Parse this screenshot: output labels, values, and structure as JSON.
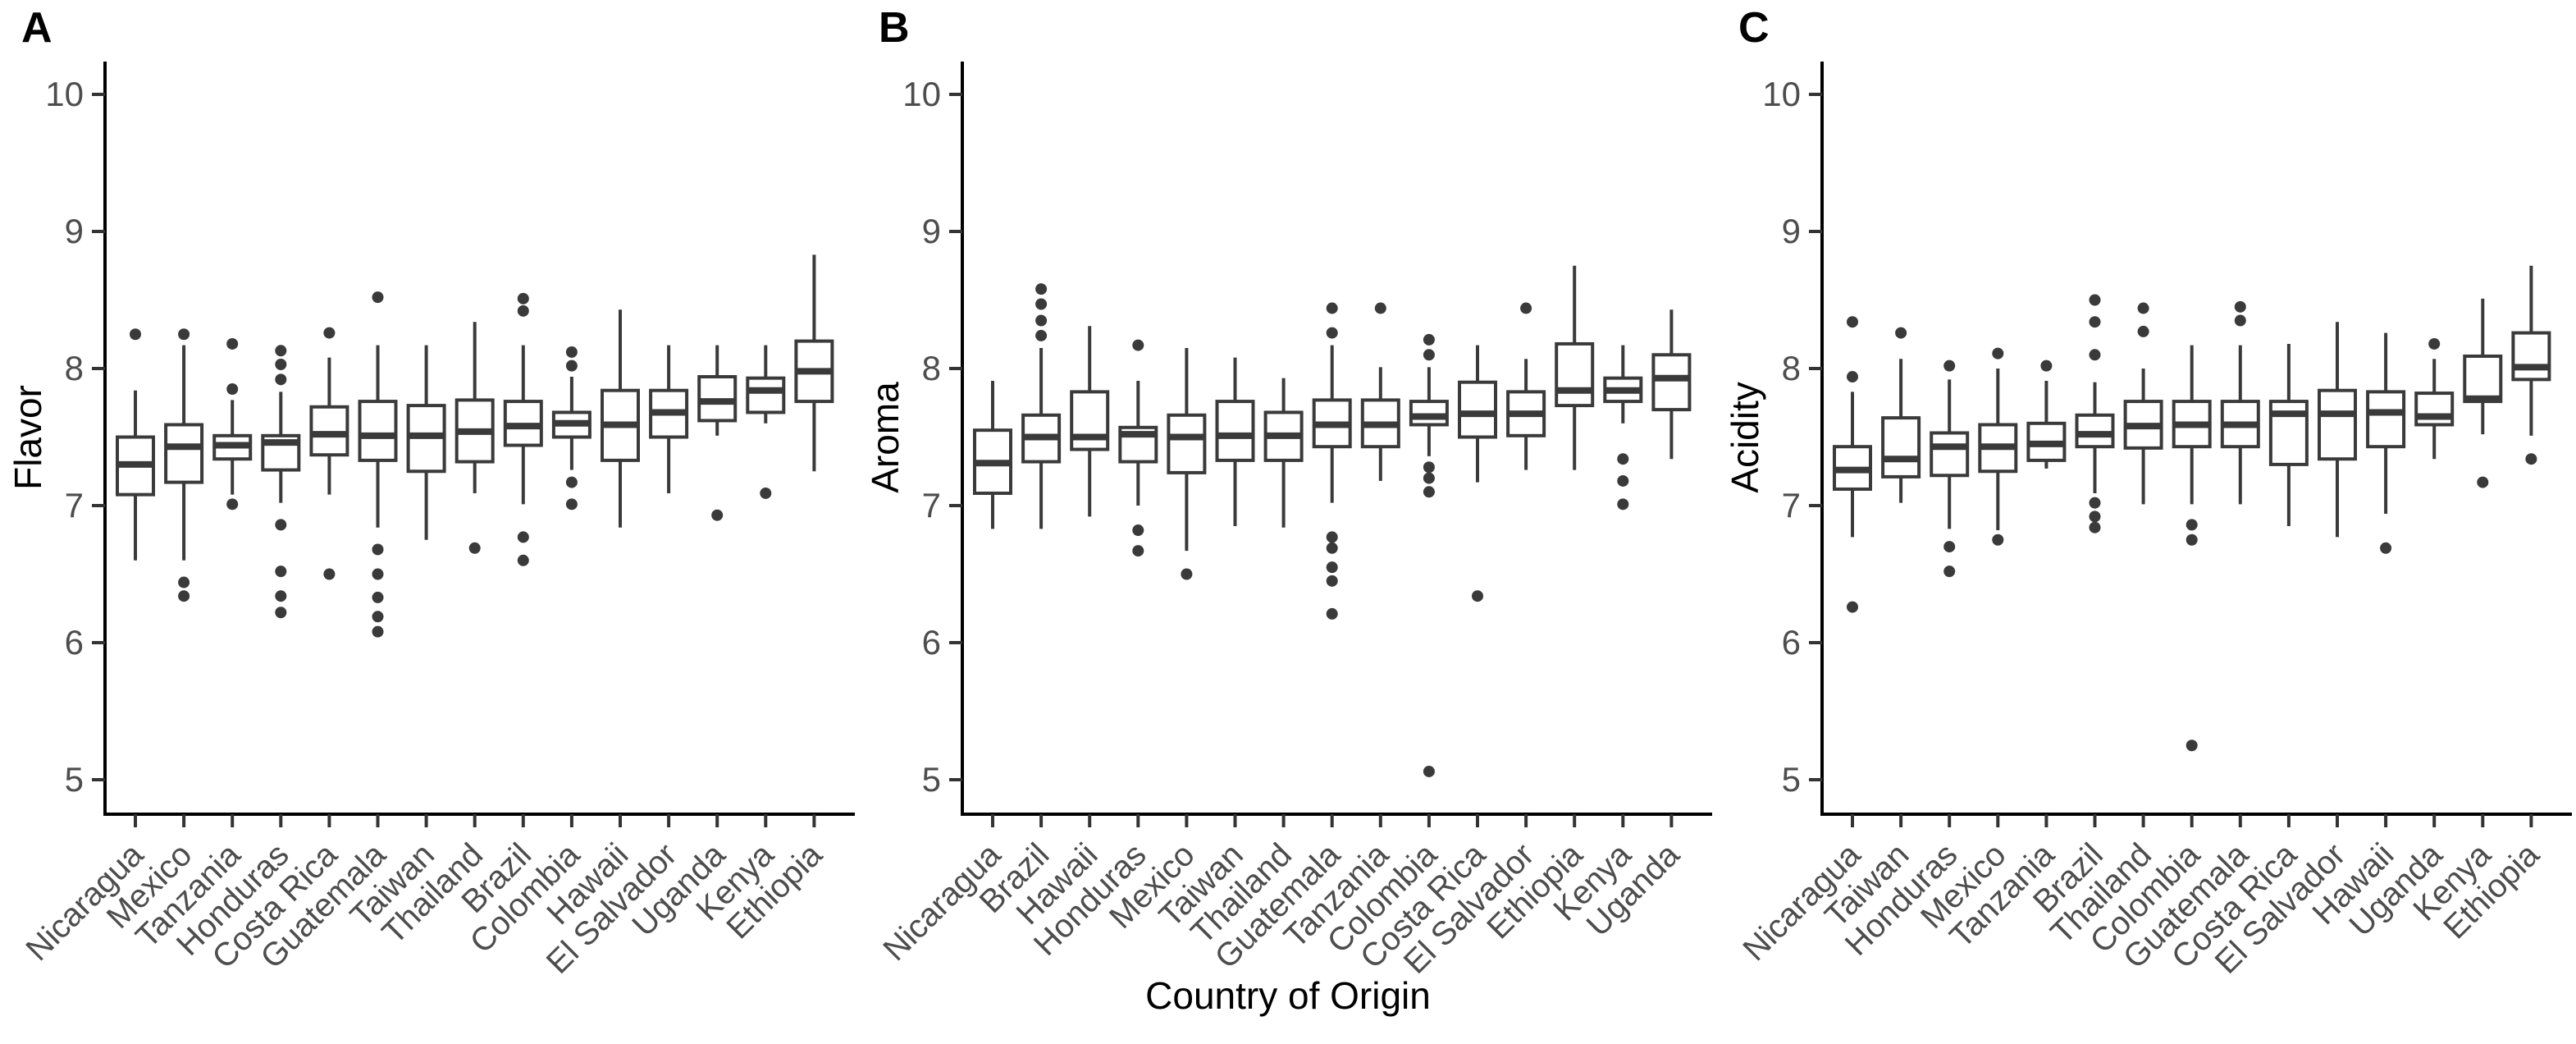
{
  "x_title": "Country of Origin",
  "colors": {
    "background": "#ffffff",
    "axis_line": "#000000",
    "tick_mark": "#333333",
    "tick_label": "#4d4d4d",
    "box_stroke": "#3a3a3a",
    "box_fill": "#ffffff",
    "outlier": "#3a3a3a",
    "title_text": "#000000"
  },
  "axis": {
    "y_ticks": [
      10,
      9,
      8,
      7,
      6,
      5
    ],
    "y_min": 4.75,
    "y_max": 10.25,
    "grid": "off",
    "legend": "none"
  },
  "chart_data": [
    {
      "type": "box",
      "letter": "A",
      "ylabel": "Flavor",
      "categories": [
        "Nicaragua",
        "Mexico",
        "Tanzania",
        "Honduras",
        "Costa Rica",
        "Guatemala",
        "Taiwan",
        "Thailand",
        "Brazil",
        "Colombia",
        "Hawaii",
        "El Salvador",
        "Uganda",
        "Kenya",
        "Ethiopia"
      ],
      "series": [
        {
          "name": "Nicaragua",
          "whisker_low": 6.6,
          "q1": 7.08,
          "median": 7.3,
          "q3": 7.5,
          "whisker_high": 7.84,
          "outliers": [
            8.25
          ]
        },
        {
          "name": "Mexico",
          "whisker_low": 6.6,
          "q1": 7.17,
          "median": 7.43,
          "q3": 7.59,
          "whisker_high": 8.17,
          "outliers": [
            8.25,
            6.44,
            6.34
          ]
        },
        {
          "name": "Tanzania",
          "whisker_low": 7.08,
          "q1": 7.34,
          "median": 7.44,
          "q3": 7.51,
          "whisker_high": 7.77,
          "outliers": [
            8.18,
            7.85,
            7.01
          ]
        },
        {
          "name": "Honduras",
          "whisker_low": 7.02,
          "q1": 7.26,
          "median": 7.46,
          "q3": 7.51,
          "whisker_high": 7.83,
          "outliers": [
            8.13,
            8.03,
            7.92,
            6.86,
            6.52,
            6.34,
            6.22
          ]
        },
        {
          "name": "Costa Rica",
          "whisker_low": 7.08,
          "q1": 7.37,
          "median": 7.52,
          "q3": 7.72,
          "whisker_high": 8.08,
          "outliers": [
            8.26,
            6.5
          ]
        },
        {
          "name": "Guatemala",
          "whisker_low": 6.84,
          "q1": 7.33,
          "median": 7.51,
          "q3": 7.76,
          "whisker_high": 8.17,
          "outliers": [
            8.52,
            6.68,
            6.5,
            6.33,
            6.19,
            6.08
          ]
        },
        {
          "name": "Taiwan",
          "whisker_low": 6.75,
          "q1": 7.25,
          "median": 7.51,
          "q3": 7.73,
          "whisker_high": 8.17,
          "outliers": []
        },
        {
          "name": "Thailand",
          "whisker_low": 7.09,
          "q1": 7.32,
          "median": 7.54,
          "q3": 7.77,
          "whisker_high": 8.34,
          "outliers": [
            6.69
          ]
        },
        {
          "name": "Brazil",
          "whisker_low": 7.01,
          "q1": 7.44,
          "median": 7.58,
          "q3": 7.76,
          "whisker_high": 8.17,
          "outliers": [
            8.51,
            8.42,
            6.77,
            6.6
          ]
        },
        {
          "name": "Colombia",
          "whisker_low": 7.26,
          "q1": 7.5,
          "median": 7.6,
          "q3": 7.68,
          "whisker_high": 7.94,
          "outliers": [
            8.12,
            8.02,
            7.17,
            7.01
          ]
        },
        {
          "name": "Hawaii",
          "whisker_low": 6.84,
          "q1": 7.33,
          "median": 7.59,
          "q3": 7.84,
          "whisker_high": 8.43,
          "outliers": []
        },
        {
          "name": "El Salvador",
          "whisker_low": 7.09,
          "q1": 7.5,
          "median": 7.68,
          "q3": 7.84,
          "whisker_high": 8.17,
          "outliers": []
        },
        {
          "name": "Uganda",
          "whisker_low": 7.51,
          "q1": 7.62,
          "median": 7.76,
          "q3": 7.94,
          "whisker_high": 8.17,
          "outliers": [
            6.93
          ]
        },
        {
          "name": "Kenya",
          "whisker_low": 7.6,
          "q1": 7.68,
          "median": 7.84,
          "q3": 7.93,
          "whisker_high": 8.17,
          "outliers": [
            7.09
          ]
        },
        {
          "name": "Ethiopia",
          "whisker_low": 7.25,
          "q1": 7.76,
          "median": 7.98,
          "q3": 8.2,
          "whisker_high": 8.83,
          "outliers": []
        }
      ]
    },
    {
      "type": "box",
      "letter": "B",
      "ylabel": "Aroma",
      "categories": [
        "Nicaragua",
        "Brazil",
        "Hawaii",
        "Honduras",
        "Mexico",
        "Taiwan",
        "Thailand",
        "Guatemala",
        "Tanzania",
        "Colombia",
        "Costa Rica",
        "El Salvador",
        "Ethiopia",
        "Kenya",
        "Uganda"
      ],
      "series": [
        {
          "name": "Nicaragua",
          "whisker_low": 6.83,
          "q1": 7.09,
          "median": 7.31,
          "q3": 7.55,
          "whisker_high": 7.91,
          "outliers": []
        },
        {
          "name": "Brazil",
          "whisker_low": 6.83,
          "q1": 7.32,
          "median": 7.5,
          "q3": 7.66,
          "whisker_high": 8.15,
          "outliers": [
            8.58,
            8.47,
            8.35,
            8.24
          ]
        },
        {
          "name": "Hawaii",
          "whisker_low": 6.92,
          "q1": 7.41,
          "median": 7.5,
          "q3": 7.83,
          "whisker_high": 8.31,
          "outliers": []
        },
        {
          "name": "Honduras",
          "whisker_low": 7.0,
          "q1": 7.32,
          "median": 7.52,
          "q3": 7.57,
          "whisker_high": 7.91,
          "outliers": [
            8.17,
            6.82,
            6.67
          ]
        },
        {
          "name": "Mexico",
          "whisker_low": 6.67,
          "q1": 7.24,
          "median": 7.5,
          "q3": 7.66,
          "whisker_high": 8.15,
          "outliers": [
            6.5
          ]
        },
        {
          "name": "Taiwan",
          "whisker_low": 6.85,
          "q1": 7.33,
          "median": 7.51,
          "q3": 7.76,
          "whisker_high": 8.08,
          "outliers": []
        },
        {
          "name": "Thailand",
          "whisker_low": 6.84,
          "q1": 7.33,
          "median": 7.51,
          "q3": 7.68,
          "whisker_high": 7.93,
          "outliers": []
        },
        {
          "name": "Guatemala",
          "whisker_low": 7.02,
          "q1": 7.43,
          "median": 7.59,
          "q3": 7.77,
          "whisker_high": 8.17,
          "outliers": [
            8.44,
            8.26,
            6.77,
            6.69,
            6.55,
            6.45,
            6.21
          ]
        },
        {
          "name": "Tanzania",
          "whisker_low": 7.18,
          "q1": 7.43,
          "median": 7.59,
          "q3": 7.77,
          "whisker_high": 8.01,
          "outliers": [
            8.44
          ]
        },
        {
          "name": "Colombia",
          "whisker_low": 7.36,
          "q1": 7.59,
          "median": 7.65,
          "q3": 7.76,
          "whisker_high": 8.01,
          "outliers": [
            8.21,
            8.1,
            7.28,
            7.2,
            7.1,
            5.06
          ]
        },
        {
          "name": "Costa Rica",
          "whisker_low": 7.17,
          "q1": 7.5,
          "median": 7.67,
          "q3": 7.9,
          "whisker_high": 8.17,
          "outliers": [
            6.34
          ]
        },
        {
          "name": "El Salvador",
          "whisker_low": 7.26,
          "q1": 7.51,
          "median": 7.67,
          "q3": 7.83,
          "whisker_high": 8.07,
          "outliers": [
            8.44
          ]
        },
        {
          "name": "Ethiopia",
          "whisker_low": 7.26,
          "q1": 7.73,
          "median": 7.84,
          "q3": 8.18,
          "whisker_high": 8.75,
          "outliers": []
        },
        {
          "name": "Kenya",
          "whisker_low": 7.6,
          "q1": 7.76,
          "median": 7.84,
          "q3": 7.93,
          "whisker_high": 8.17,
          "outliers": [
            7.34,
            7.18,
            7.01
          ]
        },
        {
          "name": "Uganda",
          "whisker_low": 7.34,
          "q1": 7.7,
          "median": 7.93,
          "q3": 8.1,
          "whisker_high": 8.43,
          "outliers": []
        }
      ]
    },
    {
      "type": "box",
      "letter": "C",
      "ylabel": "Acidity",
      "categories": [
        "Nicaragua",
        "Taiwan",
        "Honduras",
        "Mexico",
        "Tanzania",
        "Brazil",
        "Thailand",
        "Colombia",
        "Guatemala",
        "Costa Rica",
        "El Salvador",
        "Hawaii",
        "Uganda",
        "Kenya",
        "Ethiopia"
      ],
      "series": [
        {
          "name": "Nicaragua",
          "whisker_low": 6.77,
          "q1": 7.12,
          "median": 7.26,
          "q3": 7.43,
          "whisker_high": 7.83,
          "outliers": [
            8.34,
            7.94,
            6.26
          ]
        },
        {
          "name": "Taiwan",
          "whisker_low": 7.02,
          "q1": 7.21,
          "median": 7.34,
          "q3": 7.64,
          "whisker_high": 8.07,
          "outliers": [
            8.26
          ]
        },
        {
          "name": "Honduras",
          "whisker_low": 6.83,
          "q1": 7.22,
          "median": 7.43,
          "q3": 7.53,
          "whisker_high": 7.92,
          "outliers": [
            8.02,
            6.7,
            6.52
          ]
        },
        {
          "name": "Mexico",
          "whisker_low": 6.82,
          "q1": 7.25,
          "median": 7.43,
          "q3": 7.59,
          "whisker_high": 8.0,
          "outliers": [
            8.11,
            6.75
          ]
        },
        {
          "name": "Tanzania",
          "whisker_low": 7.27,
          "q1": 7.33,
          "median": 7.45,
          "q3": 7.6,
          "whisker_high": 7.91,
          "outliers": [
            8.02
          ]
        },
        {
          "name": "Brazil",
          "whisker_low": 7.09,
          "q1": 7.43,
          "median": 7.52,
          "q3": 7.66,
          "whisker_high": 7.9,
          "outliers": [
            8.5,
            8.34,
            8.1,
            7.02,
            6.92,
            6.84
          ]
        },
        {
          "name": "Thailand",
          "whisker_low": 7.01,
          "q1": 7.42,
          "median": 7.58,
          "q3": 7.76,
          "whisker_high": 8.0,
          "outliers": [
            8.44,
            8.27
          ]
        },
        {
          "name": "Colombia",
          "whisker_low": 7.01,
          "q1": 7.43,
          "median": 7.59,
          "q3": 7.76,
          "whisker_high": 8.17,
          "outliers": [
            6.86,
            6.75,
            5.25
          ]
        },
        {
          "name": "Guatemala",
          "whisker_low": 7.01,
          "q1": 7.43,
          "median": 7.59,
          "q3": 7.76,
          "whisker_high": 8.17,
          "outliers": [
            8.45,
            8.35
          ]
        },
        {
          "name": "Costa Rica",
          "whisker_low": 6.85,
          "q1": 7.3,
          "median": 7.67,
          "q3": 7.76,
          "whisker_high": 8.18,
          "outliers": []
        },
        {
          "name": "El Salvador",
          "whisker_low": 6.77,
          "q1": 7.34,
          "median": 7.67,
          "q3": 7.84,
          "whisker_high": 8.34,
          "outliers": []
        },
        {
          "name": "Hawaii",
          "whisker_low": 6.94,
          "q1": 7.43,
          "median": 7.68,
          "q3": 7.83,
          "whisker_high": 8.26,
          "outliers": [
            6.69
          ]
        },
        {
          "name": "Uganda",
          "whisker_low": 7.34,
          "q1": 7.59,
          "median": 7.65,
          "q3": 7.82,
          "whisker_high": 8.07,
          "outliers": [
            8.18
          ]
        },
        {
          "name": "Kenya",
          "whisker_low": 7.52,
          "q1": 7.76,
          "median": 7.78,
          "q3": 8.09,
          "whisker_high": 8.51,
          "outliers": [
            7.17
          ]
        },
        {
          "name": "Ethiopia",
          "whisker_low": 7.51,
          "q1": 7.92,
          "median": 8.01,
          "q3": 8.26,
          "whisker_high": 8.75,
          "outliers": [
            7.34
          ]
        }
      ]
    }
  ]
}
